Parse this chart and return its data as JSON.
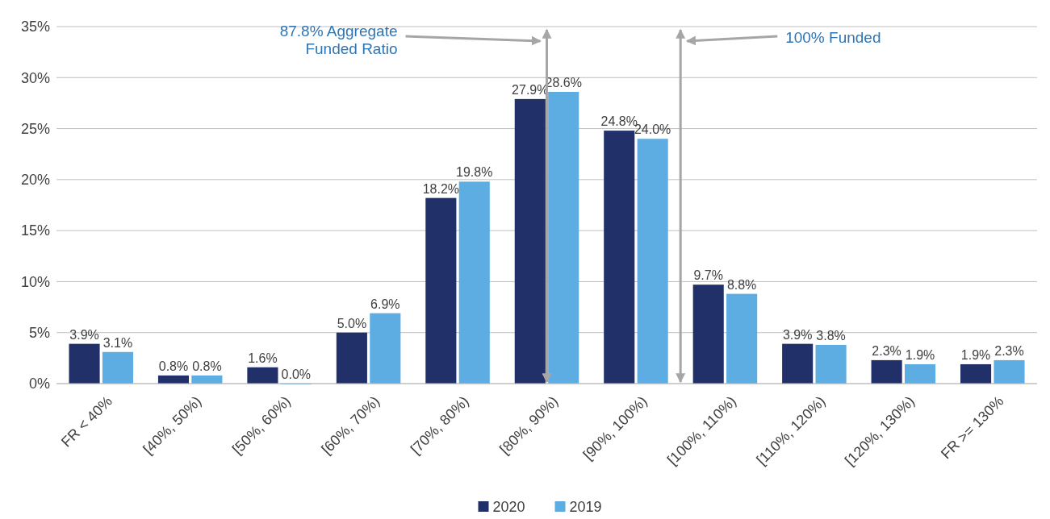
{
  "chart_data": {
    "type": "bar",
    "categories": [
      "FR < 40%",
      "[40%, 50%)",
      "[50%, 60%)",
      "[60%, 70%)",
      "[70%, 80%)",
      "[80%, 90%)",
      "[90%, 100%)",
      "[100%, 110%)",
      "[110%, 120%)",
      "[120%, 130%)",
      "FR >= 130%"
    ],
    "series": [
      {
        "name": "2020",
        "color": "#22306a",
        "values": [
          3.9,
          0.8,
          1.6,
          5.0,
          18.2,
          27.9,
          24.8,
          9.7,
          3.9,
          2.3,
          1.9
        ],
        "value_labels": [
          "3.9%",
          "0.8%",
          "1.6%",
          "5.0%",
          "18.2%",
          "27.9%",
          "24.8%",
          "9.7%",
          "3.9%",
          "2.3%",
          "1.9%"
        ]
      },
      {
        "name": "2019",
        "color": "#5dade2",
        "values": [
          3.1,
          0.8,
          0.0,
          6.9,
          19.8,
          28.6,
          24.0,
          8.8,
          3.8,
          1.9,
          2.3
        ],
        "value_labels": [
          "3.1%",
          "0.8%",
          "0.0%",
          "6.9%",
          "19.8%",
          "28.6%",
          "24.0%",
          "8.8%",
          "3.8%",
          "1.9%",
          "2.3%"
        ]
      }
    ],
    "ylim": [
      0,
      35
    ],
    "yticks": [
      {
        "value": 0,
        "label": "0%"
      },
      {
        "value": 5,
        "label": "5%"
      },
      {
        "value": 10,
        "label": "10%"
      },
      {
        "value": 15,
        "label": "15%"
      },
      {
        "value": 20,
        "label": "20%"
      },
      {
        "value": 25,
        "label": "25%"
      },
      {
        "value": 30,
        "label": "30%"
      },
      {
        "value": 35,
        "label": "35%"
      }
    ],
    "grid": "y",
    "legend": "bottom",
    "ref_lines": [
      {
        "axis": "x",
        "value": "[80%, 90%)",
        "label": "87.8% Aggregate Funded Ratio",
        "color": "#a6a6a6"
      },
      {
        "axis": "x",
        "value": "[100%, 110%)",
        "label": "100% Funded",
        "color": "#a6a6a6"
      }
    ]
  }
}
